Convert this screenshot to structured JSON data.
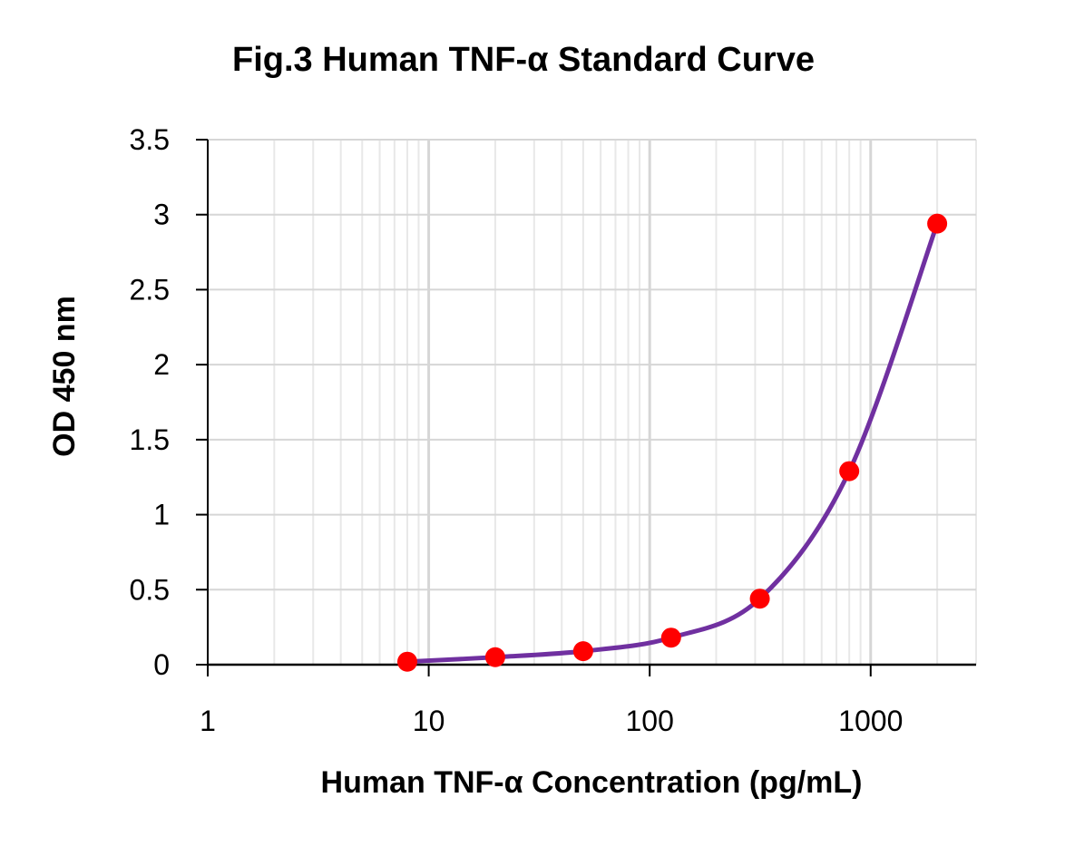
{
  "chart_data": {
    "type": "scatter",
    "title": "Fig.3 Human TNF-α Standard Curve",
    "xlabel": "Human TNF-α Concentration (pg/mL)",
    "ylabel": "OD 450 nm",
    "x_scale": "log",
    "xlim": [
      1,
      3000
    ],
    "ylim": [
      0,
      3.5
    ],
    "x_ticks": [
      1,
      10,
      100,
      1000
    ],
    "x_tick_labels": [
      "1",
      "10",
      "100",
      "1000"
    ],
    "y_ticks": [
      0,
      0.5,
      1,
      1.5,
      2,
      2.5,
      3,
      3.5
    ],
    "y_tick_labels": [
      "0",
      "0.5",
      "1",
      "1.5",
      "2",
      "2.5",
      "3",
      "3.5"
    ],
    "grid": true,
    "series": [
      {
        "x": [
          8,
          20,
          50,
          125,
          315,
          800,
          2000
        ],
        "y": [
          0.02,
          0.05,
          0.09,
          0.18,
          0.44,
          1.29,
          2.94
        ],
        "marker_color": "#ff0000",
        "fit_color": "#7030a0"
      }
    ]
  }
}
